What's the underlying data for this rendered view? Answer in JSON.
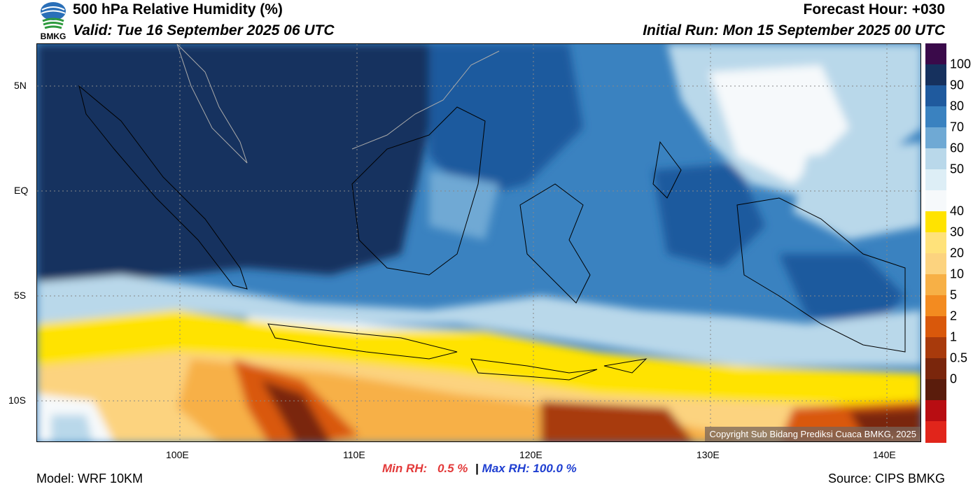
{
  "header": {
    "title": "500 hPa Relative Humidity (%)",
    "valid": "Valid: Tue 16 September 2025 06 UTC",
    "forecast_hour": "Forecast Hour: +030",
    "initial_run": "Initial Run: Mon 15 September 2025 00 UTC",
    "logo_text": "BMKG"
  },
  "axes": {
    "lat_labels": [
      "5N",
      "EQ",
      "5S",
      "10S"
    ],
    "lon_labels": [
      "100E",
      "110E",
      "120E",
      "130E",
      "140E"
    ]
  },
  "colorbar": {
    "labels": [
      "100",
      "90",
      "80",
      "70",
      "60",
      "50",
      "40",
      "30",
      "20",
      "10",
      "5",
      "2",
      "1",
      "0.5",
      "0"
    ],
    "colors": [
      "#3a0a4a",
      "#16315e",
      "#1f5a9e",
      "#3a82c0",
      "#6fa9d4",
      "#b9d8ea",
      "#ddeef6",
      "#f6f9fb",
      "#ffe300",
      "#ffe27a",
      "#fcd37f",
      "#f7b046",
      "#f38b20",
      "#d9580b",
      "#a83a0c",
      "#7a260c",
      "#5a1c0c",
      "#b80d12",
      "#e1251b"
    ]
  },
  "copyright": "Copyright Sub Bidang Prediksi Cuaca BMKG, 2025",
  "footer": {
    "model": "Model: WRF 10KM",
    "source": "Source: CIPS BMKG",
    "min_label": "Min RH:",
    "min_value": "0.5 %",
    "separator": "|",
    "max_label": "Max RH: 100.0 %"
  }
}
